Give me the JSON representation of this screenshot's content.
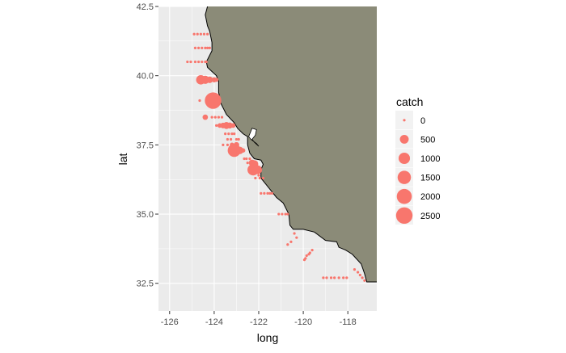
{
  "chart_data": {
    "type": "scatter",
    "xlabel": "long",
    "ylabel": "lat",
    "xlim": [
      -126.5,
      -116.7
    ],
    "ylim": [
      31.5,
      42.5
    ],
    "xticks": [
      -126,
      -124,
      -122,
      -120,
      -118
    ],
    "yticks": [
      32.5,
      35.0,
      37.5,
      40.0,
      42.5
    ],
    "xtick_labels": [
      "-126",
      "-124",
      "-122",
      "-120",
      "-118"
    ],
    "ytick_labels": [
      "32.5",
      "35.0",
      "37.5",
      "40.0",
      "42.5"
    ],
    "grid": true,
    "legend": {
      "title": "catch",
      "position": "right",
      "entries": [
        {
          "label": "0",
          "value": 0
        },
        {
          "label": "500",
          "value": 500
        },
        {
          "label": "1000",
          "value": 1000
        },
        {
          "label": "1500",
          "value": 1500
        },
        {
          "label": "2000",
          "value": 2000
        },
        {
          "label": "2500",
          "value": 2500
        }
      ]
    },
    "colors": {
      "points": "#f8766d",
      "land": "#8b8b78",
      "panel": "#ebebeb",
      "grid": "#ffffff",
      "coast": "#000000"
    },
    "coastline": [
      [
        -124.3,
        42.5
      ],
      [
        -124.4,
        42.2
      ],
      [
        -124.3,
        41.8
      ],
      [
        -124.2,
        41.6
      ],
      [
        -124.1,
        41.2
      ],
      [
        -124.1,
        40.9
      ],
      [
        -124.35,
        40.5
      ],
      [
        -124.3,
        40.3
      ],
      [
        -123.9,
        40.0
      ],
      [
        -123.8,
        39.8
      ],
      [
        -123.8,
        39.4
      ],
      [
        -123.7,
        39.0
      ],
      [
        -123.45,
        38.6
      ],
      [
        -123.1,
        38.3
      ],
      [
        -122.95,
        38.1
      ],
      [
        -122.7,
        37.9
      ],
      [
        -122.5,
        37.8
      ],
      [
        -122.5,
        37.5
      ],
      [
        -122.4,
        37.2
      ],
      [
        -122.2,
        37.0
      ],
      [
        -121.9,
        36.95
      ],
      [
        -121.8,
        36.8
      ],
      [
        -121.9,
        36.6
      ],
      [
        -121.9,
        36.3
      ],
      [
        -121.5,
        35.9
      ],
      [
        -121.2,
        35.6
      ],
      [
        -120.9,
        35.4
      ],
      [
        -120.65,
        35.0
      ],
      [
        -120.6,
        34.6
      ],
      [
        -120.45,
        34.45
      ],
      [
        -120.0,
        34.45
      ],
      [
        -119.5,
        34.35
      ],
      [
        -119.0,
        34.05
      ],
      [
        -118.5,
        34.0
      ],
      [
        -118.4,
        33.8
      ],
      [
        -118.1,
        33.7
      ],
      [
        -117.8,
        33.55
      ],
      [
        -117.4,
        33.2
      ],
      [
        -117.25,
        32.85
      ],
      [
        -117.15,
        32.55
      ],
      [
        -116.7,
        32.55
      ]
    ],
    "bay": [
      [
        -122.45,
        37.8
      ],
      [
        -122.35,
        38.0
      ],
      [
        -122.3,
        38.1
      ],
      [
        -122.1,
        38.05
      ],
      [
        -122.15,
        37.85
      ],
      [
        -122.3,
        37.7
      ],
      [
        -122.2,
        37.6
      ],
      [
        -122.0,
        37.45
      ],
      [
        -122.1,
        37.55
      ],
      [
        -122.35,
        37.7
      ],
      [
        -122.45,
        37.8
      ]
    ],
    "size_scale": {
      "min_size_label": 0,
      "max_size_label": 2500
    },
    "points": [
      [
        -124.9,
        41.5,
        0
      ],
      [
        -124.75,
        41.5,
        0
      ],
      [
        -124.6,
        41.5,
        0
      ],
      [
        -124.45,
        41.5,
        0
      ],
      [
        -124.3,
        41.5,
        0
      ],
      [
        -124.85,
        41.0,
        0
      ],
      [
        -124.7,
        41.0,
        0
      ],
      [
        -124.55,
        41.0,
        0
      ],
      [
        -124.4,
        41.0,
        0
      ],
      [
        -124.3,
        41.0,
        0
      ],
      [
        -124.2,
        41.0,
        0
      ],
      [
        -125.2,
        40.5,
        0
      ],
      [
        -125.05,
        40.5,
        0
      ],
      [
        -124.85,
        40.5,
        0
      ],
      [
        -124.7,
        40.5,
        0
      ],
      [
        -124.55,
        40.5,
        0
      ],
      [
        -124.4,
        40.5,
        0
      ],
      [
        -124.35,
        40.5,
        0
      ],
      [
        -124.6,
        39.85,
        600
      ],
      [
        -124.4,
        39.85,
        400
      ],
      [
        -124.2,
        39.85,
        200
      ],
      [
        -124.0,
        39.85,
        80
      ],
      [
        -123.9,
        39.85,
        30
      ],
      [
        -124.65,
        39.1,
        0
      ],
      [
        -124.3,
        39.1,
        80
      ],
      [
        -124.05,
        39.1,
        2500
      ],
      [
        -123.85,
        39.1,
        50
      ],
      [
        -124.4,
        38.5,
        100
      ],
      [
        -124.1,
        38.5,
        0
      ],
      [
        -123.95,
        38.5,
        0
      ],
      [
        -123.8,
        38.5,
        0
      ],
      [
        -123.65,
        38.5,
        0
      ],
      [
        -123.9,
        38.2,
        0
      ],
      [
        -123.75,
        38.2,
        50
      ],
      [
        -123.6,
        38.2,
        120
      ],
      [
        -123.45,
        38.2,
        250
      ],
      [
        -123.3,
        38.2,
        150
      ],
      [
        -123.15,
        38.2,
        60
      ],
      [
        -123.5,
        37.9,
        0
      ],
      [
        -123.35,
        37.9,
        0
      ],
      [
        -123.2,
        37.9,
        0
      ],
      [
        -123.1,
        37.9,
        0
      ],
      [
        -123.4,
        37.7,
        0
      ],
      [
        -123.25,
        37.7,
        0
      ],
      [
        -123.0,
        37.7,
        0
      ],
      [
        -122.9,
        37.7,
        0
      ],
      [
        -123.6,
        37.5,
        0
      ],
      [
        -123.4,
        37.5,
        0
      ],
      [
        -123.2,
        37.5,
        50
      ],
      [
        -123.0,
        37.5,
        120
      ],
      [
        -123.1,
        37.3,
        1400
      ],
      [
        -122.85,
        37.3,
        300
      ],
      [
        -122.7,
        37.3,
        40
      ],
      [
        -122.65,
        37.0,
        0
      ],
      [
        -122.55,
        37.0,
        0
      ],
      [
        -122.4,
        37.0,
        0
      ],
      [
        -122.5,
        36.85,
        0
      ],
      [
        -122.35,
        36.85,
        0
      ],
      [
        -122.3,
        36.85,
        200
      ],
      [
        -122.2,
        36.8,
        400
      ],
      [
        -122.25,
        36.6,
        1000
      ],
      [
        -122.05,
        36.6,
        500
      ],
      [
        -121.95,
        36.6,
        0
      ],
      [
        -122.0,
        36.4,
        0
      ],
      [
        -122.15,
        36.3,
        0
      ],
      [
        -121.95,
        36.3,
        0
      ],
      [
        -121.8,
        36.3,
        0
      ],
      [
        -121.9,
        35.75,
        0
      ],
      [
        -121.75,
        35.75,
        0
      ],
      [
        -121.6,
        35.75,
        0
      ],
      [
        -121.5,
        35.75,
        0
      ],
      [
        -121.4,
        35.75,
        0
      ],
      [
        -121.1,
        35.0,
        0
      ],
      [
        -120.95,
        35.0,
        0
      ],
      [
        -120.8,
        35.0,
        0
      ],
      [
        -120.7,
        35.0,
        0
      ],
      [
        -120.4,
        34.3,
        0
      ],
      [
        -120.3,
        34.15,
        0
      ],
      [
        -120.55,
        34.0,
        0
      ],
      [
        -120.7,
        33.9,
        0
      ],
      [
        -119.6,
        33.7,
        0
      ],
      [
        -119.75,
        33.55,
        0
      ],
      [
        -119.9,
        33.4,
        0
      ],
      [
        -119.85,
        33.5,
        0
      ],
      [
        -119.7,
        33.6,
        0
      ],
      [
        -119.95,
        33.35,
        0
      ],
      [
        -119.1,
        32.7,
        0
      ],
      [
        -118.95,
        32.7,
        0
      ],
      [
        -118.75,
        32.7,
        0
      ],
      [
        -118.6,
        32.7,
        0
      ],
      [
        -118.4,
        32.7,
        0
      ],
      [
        -118.2,
        32.7,
        0
      ],
      [
        -118.05,
        32.7,
        0
      ],
      [
        -117.7,
        33.0,
        0
      ],
      [
        -117.55,
        32.9,
        0
      ],
      [
        -117.45,
        32.8,
        0
      ],
      [
        -117.35,
        32.7,
        0
      ],
      [
        -117.25,
        32.6,
        0
      ]
    ]
  }
}
